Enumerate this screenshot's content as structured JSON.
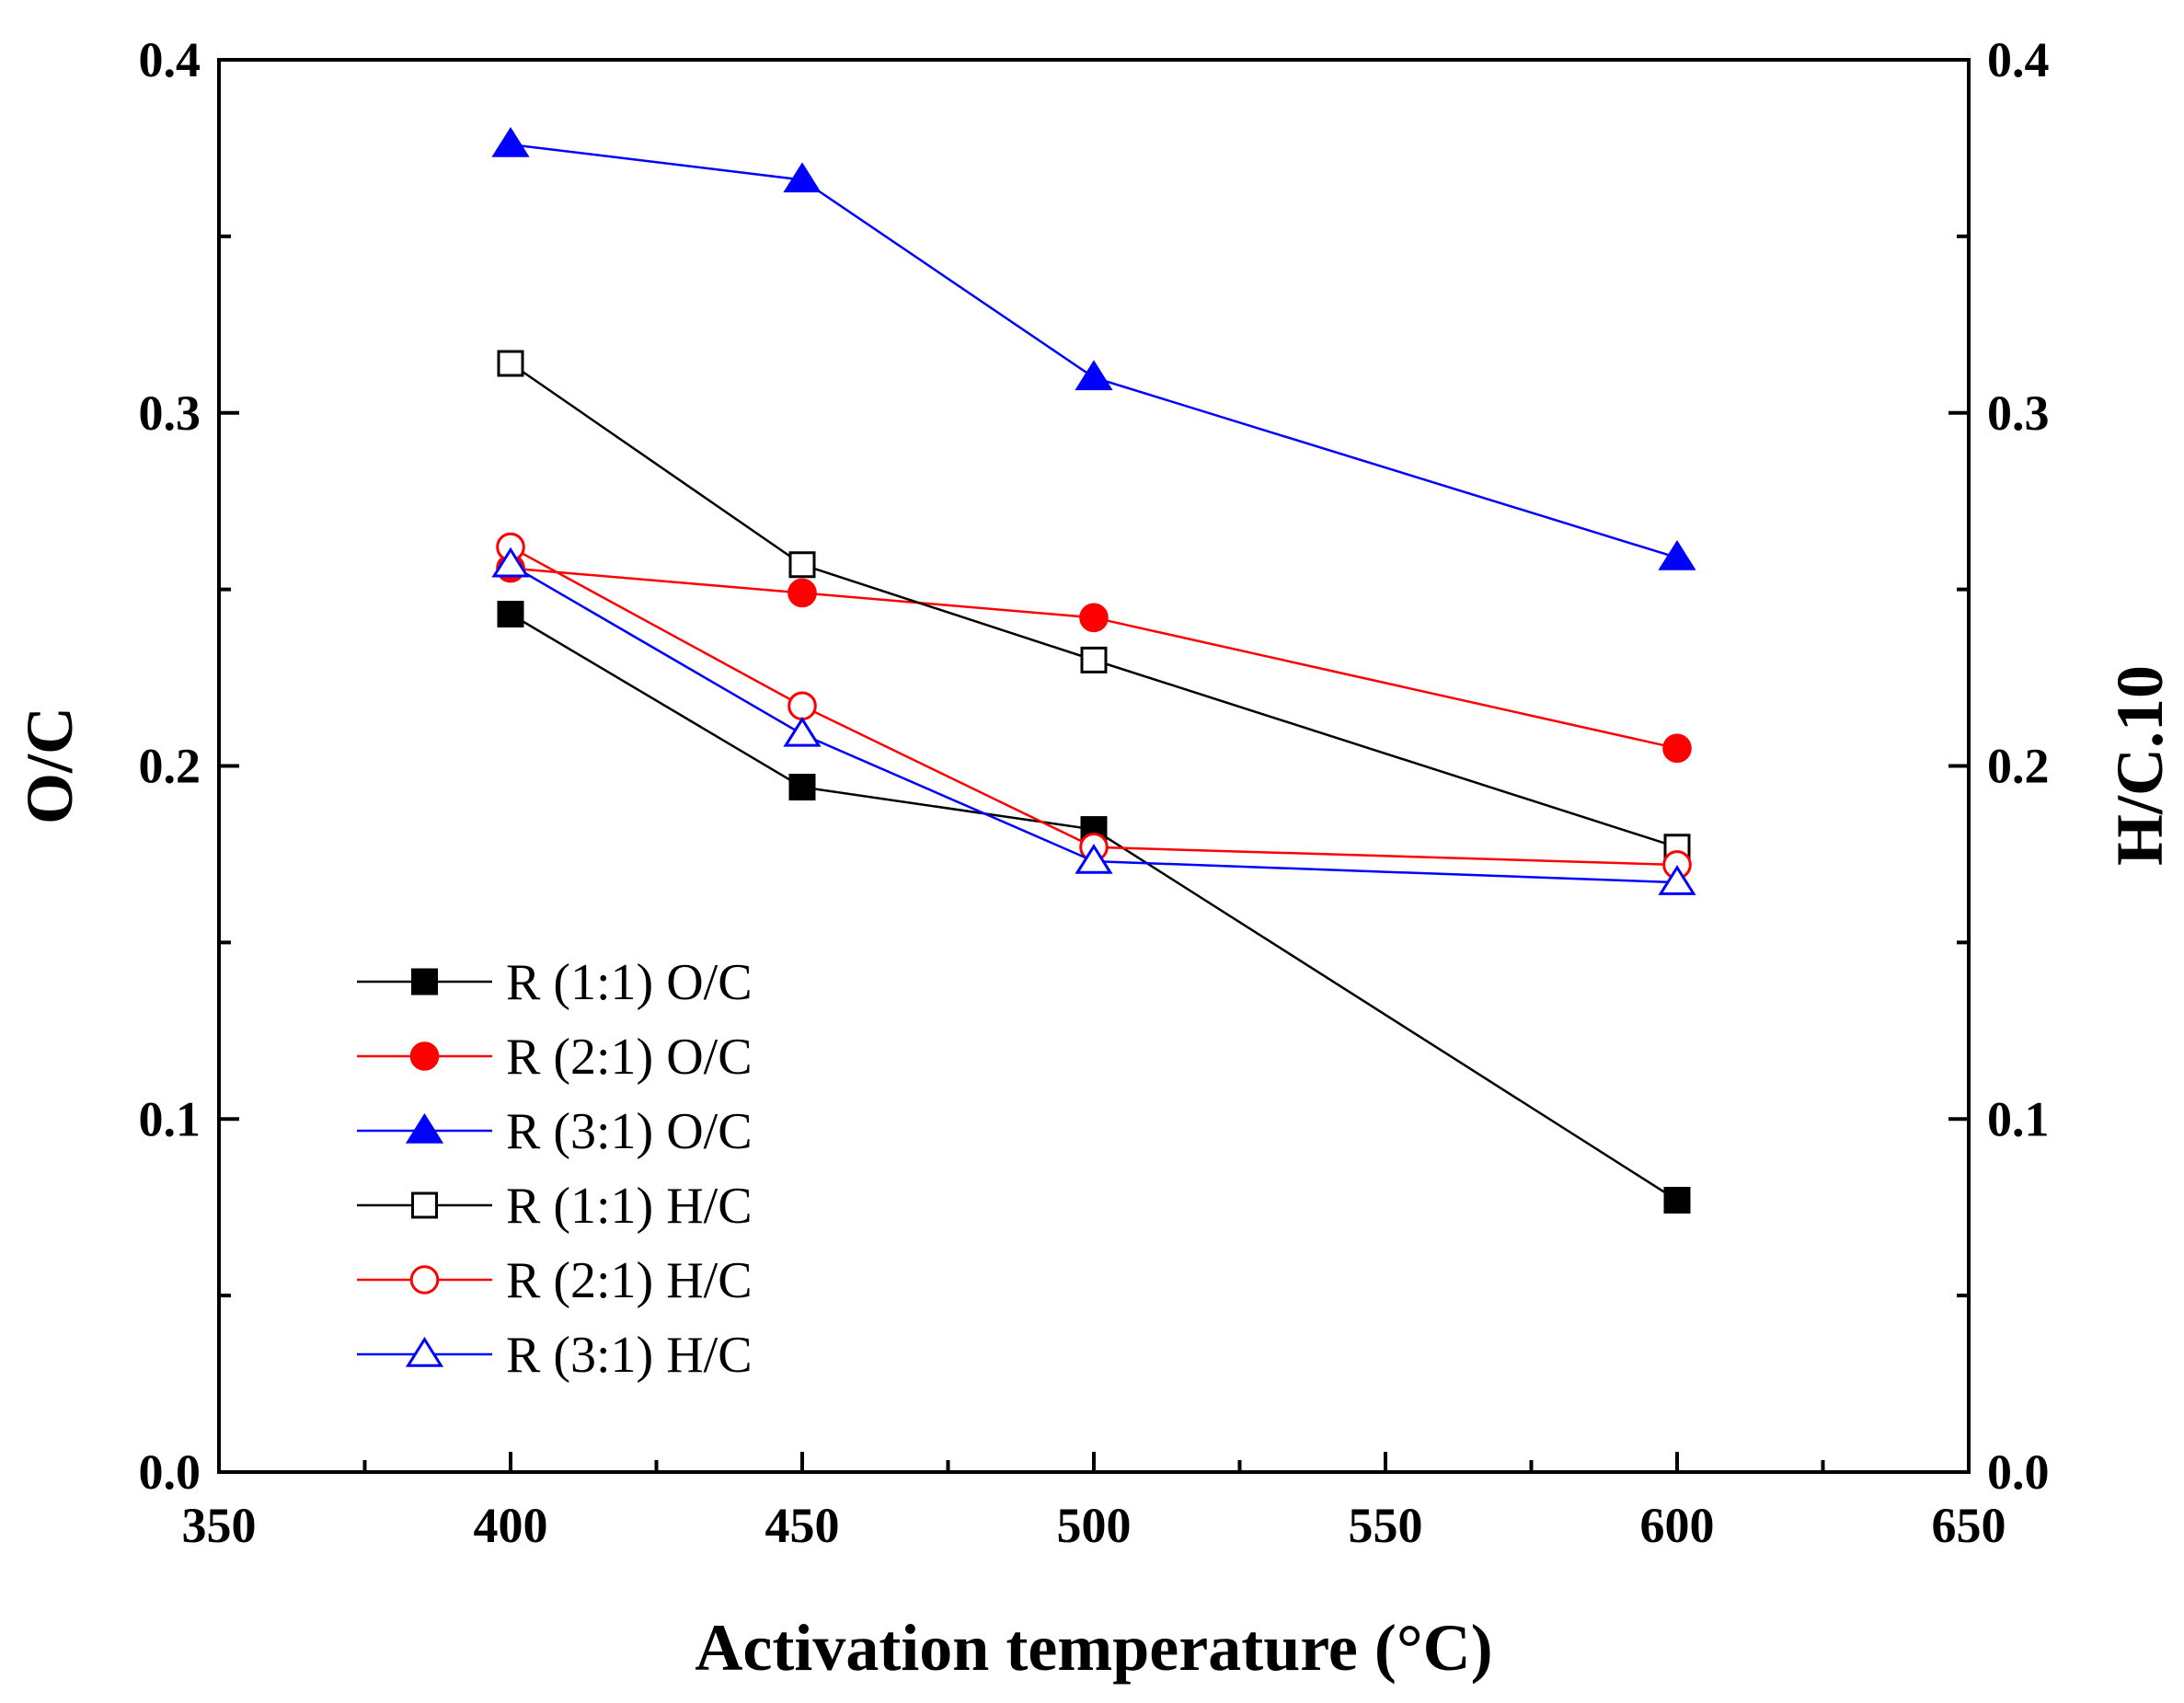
{
  "chart_data": {
    "type": "line",
    "xlabel": "Activation temperature (°C)",
    "ylabel": "O/C",
    "ylabel_right": "H/C.10",
    "xlim": [
      350,
      650
    ],
    "ylim": [
      0.0,
      0.4
    ],
    "ylim_right": [
      0.0,
      0.4
    ],
    "xticks": [
      350,
      400,
      450,
      500,
      550,
      600,
      650
    ],
    "xtick_labels": [
      "350",
      "400",
      "450",
      "500",
      "550",
      "600",
      "650"
    ],
    "yticks": [
      0.0,
      0.1,
      0.2,
      0.3,
      0.4
    ],
    "ytick_labels": [
      "0.0",
      "0.1",
      "0.2",
      "0.3",
      "0.4"
    ],
    "ytick_labels_right": [
      "0.0",
      "0.1",
      "0.2",
      "0.3",
      "0.4"
    ],
    "legend_position": "lower-left",
    "series": [
      {
        "name": "R (1:1) O/C",
        "color": "#000000",
        "marker": "square",
        "filled": true,
        "x": [
          400,
          450,
          500,
          600
        ],
        "values": [
          0.243,
          0.194,
          0.182,
          0.077
        ]
      },
      {
        "name": "R (2:1) O/C",
        "color": "#ff0000",
        "marker": "circle",
        "filled": true,
        "x": [
          400,
          450,
          500,
          600
        ],
        "values": [
          0.256,
          0.249,
          0.242,
          0.205
        ]
      },
      {
        "name": "R (3:1) O/C",
        "color": "#0000ff",
        "marker": "triangle",
        "filled": true,
        "x": [
          400,
          450,
          500,
          600
        ],
        "values": [
          0.376,
          0.366,
          0.31,
          0.259
        ]
      },
      {
        "name": "R (1:1) H/C",
        "color": "#000000",
        "marker": "square",
        "filled": false,
        "x": [
          400,
          450,
          500,
          600
        ],
        "values": [
          0.314,
          0.257,
          0.23,
          0.177
        ]
      },
      {
        "name": "R (2:1) H/C",
        "color": "#ff0000",
        "marker": "circle",
        "filled": false,
        "x": [
          400,
          450,
          500,
          600
        ],
        "values": [
          0.262,
          0.217,
          0.177,
          0.172
        ]
      },
      {
        "name": "R (3:1) H/C",
        "color": "#0000ff",
        "marker": "triangle",
        "filled": false,
        "x": [
          400,
          450,
          500,
          600
        ],
        "values": [
          0.257,
          0.209,
          0.173,
          0.167
        ]
      }
    ]
  }
}
